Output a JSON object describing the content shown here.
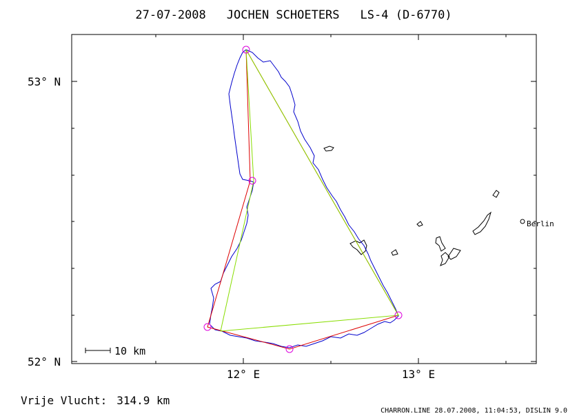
{
  "header": {
    "date": "27-07-2008",
    "pilot": "JOCHEN SCHOETERS",
    "glider": "LS-4 (D-6770)"
  },
  "axes": {
    "lat_labels": [
      "53° N",
      "52° N"
    ],
    "lon_labels": [
      "12° E",
      "13° E"
    ]
  },
  "scale_bar": {
    "label": "10 km"
  },
  "city": {
    "name": "Berlin"
  },
  "footer": {
    "distance_label": "Vrije Vlucht:",
    "distance_value": "314.9 km",
    "credit": "CHARRON.LINE 28.07.2008, 11:04:53, DISLIN 9.0"
  },
  "colors": {
    "track": "#0000cc",
    "declared_route": "#dd0000",
    "scoring_triangle": "#88dd00",
    "turnpoint": "#dd00dd",
    "lakes": "#000000"
  }
}
